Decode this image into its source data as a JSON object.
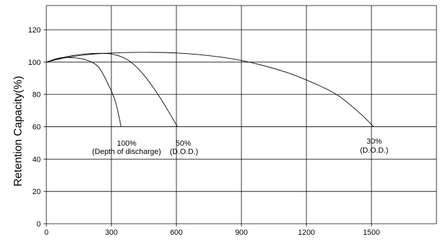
{
  "chart_data": {
    "type": "line",
    "title": "",
    "xlabel": "",
    "ylabel": "Retention Capacity(%)",
    "xlim": [
      0,
      1800
    ],
    "ylim": [
      0,
      135
    ],
    "x_ticks": [
      "0",
      "300",
      "600",
      "900",
      "1200",
      "1500"
    ],
    "x_tick_values": [
      0,
      300,
      600,
      900,
      1200,
      1500
    ],
    "y_ticks": [
      "0",
      "20",
      "40",
      "60",
      "80",
      "100",
      "120"
    ],
    "y_tick_values": [
      0,
      20,
      40,
      60,
      80,
      100,
      120
    ],
    "grid": true,
    "series": [
      {
        "name": "100%",
        "points": [
          [
            0,
            100
          ],
          [
            60,
            102.5
          ],
          [
            120,
            102.7
          ],
          [
            180,
            101.5
          ],
          [
            240,
            97
          ],
          [
            290,
            85
          ],
          [
            320,
            75
          ],
          [
            345,
            60
          ]
        ]
      },
      {
        "name": "50%",
        "points": [
          [
            0,
            100
          ],
          [
            100,
            103.5
          ],
          [
            200,
            105.2
          ],
          [
            300,
            105
          ],
          [
            380,
            101
          ],
          [
            450,
            92
          ],
          [
            520,
            79
          ],
          [
            570,
            68
          ],
          [
            605,
            60
          ]
        ]
      },
      {
        "name": "30%",
        "points": [
          [
            0,
            100
          ],
          [
            100,
            103
          ],
          [
            250,
            105.3
          ],
          [
            500,
            106
          ],
          [
            700,
            104.7
          ],
          [
            900,
            101
          ],
          [
            1100,
            94
          ],
          [
            1250,
            86
          ],
          [
            1350,
            79
          ],
          [
            1450,
            68
          ],
          [
            1510,
            60
          ]
        ]
      }
    ],
    "annotations": [
      {
        "id": "a100",
        "lines": [
          "100%",
          "(Depth of discharge)"
        ]
      },
      {
        "id": "a50",
        "lines": [
          "50%",
          "(D.O.D.)"
        ]
      },
      {
        "id": "a30",
        "lines": [
          "30%",
          "(D.O.D.)"
        ]
      }
    ]
  }
}
